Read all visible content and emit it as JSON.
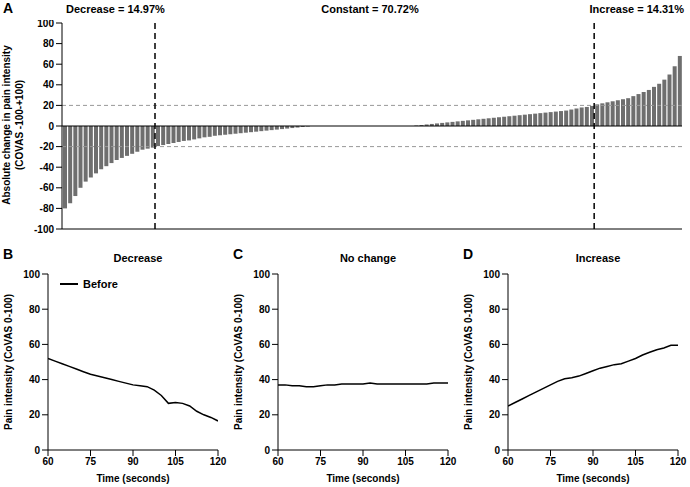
{
  "chart_data": [
    {
      "type": "bar",
      "panel": "A",
      "annotations": [
        "Decrease = 14.97%",
        "Constant = 70.72%",
        "Increase = 14.31%"
      ],
      "y_label": [
        "Absolute change in pain intensity",
        "(COVAS -100-+100)"
      ],
      "color": "#6e6e6e",
      "tick_labels": "y",
      "xlim": [
        0.5,
        120.5
      ],
      "ylim": [
        -100,
        100
      ],
      "yticks": [
        -100,
        -80,
        -60,
        -40,
        -20,
        0,
        20,
        40,
        60,
        80,
        100
      ],
      "hlines": [
        -20,
        20
      ],
      "vlines": [
        18.5,
        103.5
      ],
      "x": [
        1,
        2,
        3,
        4,
        5,
        6,
        7,
        8,
        9,
        10,
        11,
        12,
        13,
        14,
        15,
        16,
        17,
        18,
        19,
        20,
        21,
        22,
        23,
        24,
        25,
        26,
        27,
        28,
        29,
        30,
        31,
        32,
        33,
        34,
        35,
        36,
        37,
        38,
        39,
        40,
        41,
        42,
        43,
        44,
        45,
        46,
        47,
        48,
        49,
        50,
        51,
        52,
        53,
        54,
        55,
        56,
        57,
        58,
        59,
        60,
        61,
        62,
        63,
        64,
        65,
        66,
        67,
        68,
        69,
        70,
        71,
        72,
        73,
        74,
        75,
        76,
        77,
        78,
        79,
        80,
        81,
        82,
        83,
        84,
        85,
        86,
        87,
        88,
        89,
        90,
        91,
        92,
        93,
        94,
        95,
        96,
        97,
        98,
        99,
        100,
        101,
        102,
        103,
        104,
        105,
        106,
        107,
        108,
        109,
        110,
        111,
        112,
        113,
        114,
        115,
        116,
        117,
        118,
        119,
        120
      ],
      "values": [
        -80,
        -75,
        -68,
        -60,
        -54,
        -50,
        -46,
        -42,
        -39,
        -36,
        -33,
        -31,
        -29,
        -27,
        -25,
        -23,
        -22,
        -21,
        -19.5,
        -18.5,
        -17.5,
        -16.5,
        -15.5,
        -14.5,
        -14,
        -13,
        -12,
        -11,
        -10.5,
        -9.5,
        -9,
        -8.5,
        -8,
        -7.5,
        -7,
        -6.5,
        -6,
        -5.5,
        -5,
        -4.5,
        -4,
        -3.5,
        -3,
        -2.5,
        -2,
        -1.5,
        -1,
        -0.5,
        0,
        0,
        0,
        0,
        0,
        0,
        0,
        0,
        0,
        0,
        0,
        0,
        0,
        0,
        0,
        0,
        0,
        0,
        0,
        0,
        0.5,
        1,
        1.5,
        2,
        2.5,
        3,
        3.5,
        4,
        4.5,
        5,
        5.5,
        6,
        6.5,
        7,
        7.5,
        8,
        8.5,
        9,
        9.5,
        10,
        10.5,
        11,
        11.5,
        12,
        12.5,
        13,
        13.5,
        14,
        14.5,
        15,
        16,
        17,
        18,
        18.5,
        19.5,
        21,
        22,
        23,
        24,
        25,
        26,
        27,
        29,
        31,
        33,
        35,
        38,
        41,
        45,
        50,
        58,
        68
      ]
    },
    {
      "type": "line",
      "panel": "B",
      "title": "Decrease",
      "x_label": "Time (seconds)",
      "y_label": "Pain intensity  (CoVAS 0-100)",
      "xlim": [
        60,
        120
      ],
      "xticks": [
        60,
        75,
        90,
        105,
        120
      ],
      "ylim": [
        0,
        100
      ],
      "yticks": [
        0,
        20,
        40,
        60,
        80,
        100
      ],
      "legend": "top-left",
      "x": [
        60,
        62.5,
        65,
        67.5,
        70,
        72.5,
        75,
        77.5,
        80,
        82.5,
        85,
        87.5,
        90,
        92.5,
        95,
        97.5,
        100,
        102.5,
        105,
        107.5,
        110,
        112.5,
        115,
        117.5,
        120
      ],
      "series": [
        {
          "name": "Before",
          "color": "#000000",
          "values": [
            52,
            50.5,
            49,
            47.5,
            46,
            44.5,
            43,
            42,
            41,
            40,
            39,
            38,
            37,
            36.5,
            36,
            34,
            31,
            26.5,
            27,
            26.5,
            25,
            22,
            20,
            18.5,
            16.5
          ]
        }
      ]
    },
    {
      "type": "line",
      "panel": "C",
      "title": "No change",
      "x_label": "Time (seconds)",
      "y_label": "Pain intensity  (CoVAS 0-100)",
      "xlim": [
        60,
        120
      ],
      "xticks": [
        60,
        75,
        90,
        105,
        120
      ],
      "ylim": [
        0,
        100
      ],
      "yticks": [
        0,
        20,
        40,
        60,
        80,
        100
      ],
      "color": "#000000",
      "x": [
        60,
        62.5,
        65,
        67.5,
        70,
        72.5,
        75,
        77.5,
        80,
        82.5,
        85,
        87.5,
        90,
        92.5,
        95,
        97.5,
        100,
        102.5,
        105,
        107.5,
        110,
        112.5,
        115,
        117.5,
        120
      ],
      "values": [
        37,
        37,
        36.5,
        36.5,
        36,
        36,
        36.5,
        37,
        37,
        37.5,
        37.5,
        37.5,
        37.5,
        38,
        37.5,
        37.5,
        37.5,
        37.5,
        37.5,
        37.5,
        37.5,
        37.5,
        38,
        38,
        38
      ]
    },
    {
      "type": "line",
      "panel": "D",
      "title": "Increase",
      "x_label": "Time (seconds)",
      "y_label": "Pain intensity  (CoVAS 0-100)",
      "xlim": [
        60,
        120
      ],
      "xticks": [
        60,
        75,
        90,
        105,
        120
      ],
      "ylim": [
        0,
        100
      ],
      "yticks": [
        0,
        20,
        40,
        60,
        80,
        100
      ],
      "color": "#000000",
      "x": [
        60,
        62.5,
        65,
        67.5,
        70,
        72.5,
        75,
        77.5,
        80,
        82.5,
        85,
        87.5,
        90,
        92.5,
        95,
        97.5,
        100,
        102.5,
        105,
        107.5,
        110,
        112.5,
        115,
        117.5,
        120
      ],
      "values": [
        25,
        27,
        29,
        31,
        33,
        35,
        37,
        39,
        40.5,
        41,
        42,
        43.5,
        45,
        46.5,
        47.5,
        48.5,
        49,
        50.5,
        52,
        54,
        55.5,
        57,
        58,
        59.5,
        59.5
      ]
    }
  ]
}
